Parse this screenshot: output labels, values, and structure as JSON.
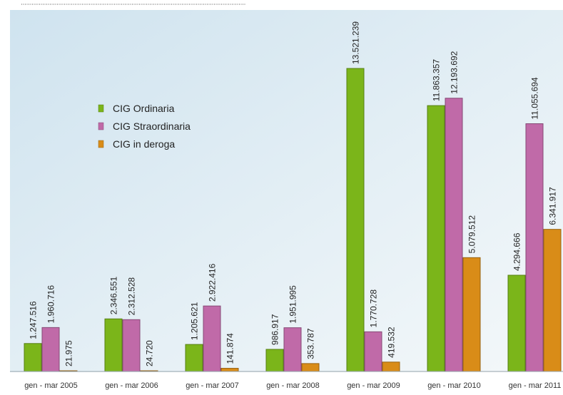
{
  "chart_data": {
    "type": "bar",
    "categories": [
      "gen - mar 2005",
      "gen - mar 2006",
      "gen - mar 2007",
      "gen - mar 2008",
      "gen - mar 2009",
      "gen - mar 2010",
      "gen - mar 2011"
    ],
    "series": [
      {
        "name": "CIG Ordinaria",
        "values": [
          1247516,
          2346551,
          1205621,
          986917,
          13521239,
          11863357,
          4294666
        ],
        "labels": [
          "1.247.516",
          "2.346.551",
          "1.205.621",
          "986.917",
          "13.521.239",
          "11.863.357",
          "4.294.666"
        ],
        "color": "#7bb51a"
      },
      {
        "name": "CIG Straordinaria",
        "values": [
          1960716,
          2312528,
          2922416,
          1951995,
          1770728,
          12193692,
          11055694
        ],
        "labels": [
          "1.960.716",
          "2.312.528",
          "2.922.416",
          "1.951.995",
          "1.770.728",
          "12.193.692",
          "11.055.694"
        ],
        "color": "#c06aa8"
      },
      {
        "name": "CIG in deroga",
        "values": [
          21975,
          24720,
          141874,
          353787,
          419532,
          5079512,
          6341917
        ],
        "labels": [
          "21.975",
          "24.720",
          "141.874",
          "353.787",
          "419.532",
          "5.079.512",
          "6.341.917"
        ],
        "color": "#d98c18"
      }
    ],
    "legend_position": "top-left",
    "grid": false
  }
}
